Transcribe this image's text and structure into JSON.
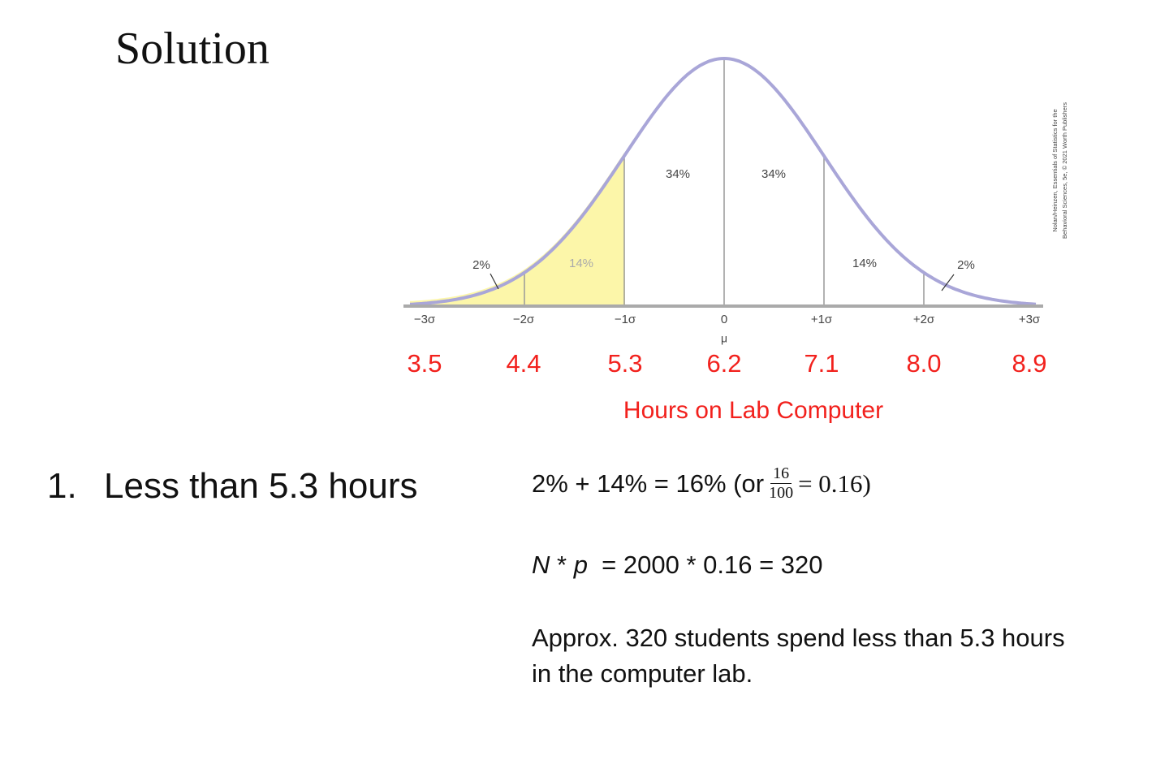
{
  "title": "Solution",
  "diagram": {
    "region_labels": [
      "2%",
      "14%",
      "34%",
      "34%",
      "14%",
      "2%"
    ],
    "sigma_labels": [
      "−3σ",
      "−2σ",
      "−1σ",
      "0",
      "+1σ",
      "+2σ",
      "+3σ"
    ],
    "mean_label": "μ",
    "hour_labels": [
      "3.5",
      "4.4",
      "5.3",
      "6.2",
      "7.1",
      "8.0",
      "8.9"
    ],
    "axis_title": "Hours on Lab Computer",
    "credit": [
      "Nolan/Heinzen, Essentials of Statistics for the",
      "Behavioral Sciences, 5e, © 2021 Worth Publishers"
    ]
  },
  "question": {
    "number": "1.",
    "text": "Less than 5.3 hours"
  },
  "answer": {
    "equation": {
      "left": "2% + 14% = 16% (or",
      "numerator": "16",
      "denominator": "100",
      "right": "= 0.16)"
    },
    "formula": {
      "n": "N",
      "times": " * ",
      "p": "p",
      "rest": "  = 2000 * 0.16 = 320"
    },
    "conclusion": "Approx. 320 students spend less than 5.3 hours in the computer lab."
  }
}
